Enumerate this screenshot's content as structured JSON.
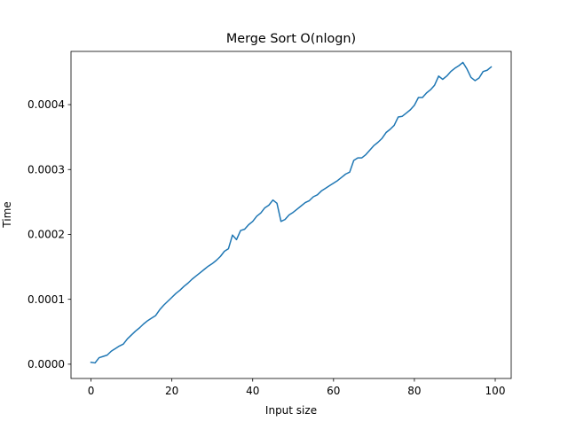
{
  "chart_data": {
    "type": "line",
    "title": "Merge Sort O(nlogn)",
    "xlabel": "Input size",
    "ylabel": "Time",
    "xlim": [
      -4.95,
      103.95
    ],
    "ylim": [
      -2.2e-05,
      0.000482
    ],
    "xticks": [
      0,
      20,
      40,
      60,
      80,
      100
    ],
    "xtick_labels": [
      "0",
      "20",
      "40",
      "60",
      "80",
      "100"
    ],
    "yticks": [
      0.0,
      0.0001,
      0.0002,
      0.0003,
      0.0004
    ],
    "ytick_labels": [
      "0.0000",
      "0.0001",
      "0.0002",
      "0.0003",
      "0.0004"
    ],
    "grid": false,
    "legend": null,
    "series": [
      {
        "color": "#1f77b4",
        "x": [
          0,
          1,
          2,
          3,
          4,
          5,
          6,
          7,
          8,
          9,
          10,
          11,
          12,
          13,
          14,
          15,
          16,
          17,
          18,
          19,
          20,
          21,
          22,
          23,
          24,
          25,
          26,
          27,
          28,
          29,
          30,
          31,
          32,
          33,
          34,
          35,
          36,
          37,
          38,
          39,
          40,
          41,
          42,
          43,
          44,
          45,
          46,
          47,
          48,
          49,
          50,
          51,
          52,
          53,
          54,
          55,
          56,
          57,
          58,
          59,
          60,
          61,
          62,
          63,
          64,
          65,
          66,
          67,
          68,
          69,
          70,
          71,
          72,
          73,
          74,
          75,
          76,
          77,
          78,
          79,
          80,
          81,
          82,
          83,
          84,
          85,
          86,
          87,
          88,
          89,
          90,
          91,
          92,
          93,
          94,
          95,
          96,
          97,
          98,
          99
        ],
        "values": [
          3e-06,
          2e-06,
          1e-05,
          1.2e-05,
          1.4e-05,
          2e-05,
          2.4e-05,
          2.8e-05,
          3.1e-05,
          3.9e-05,
          4.5e-05,
          5.1e-05,
          5.6e-05,
          6.2e-05,
          6.7e-05,
          7.1e-05,
          7.5e-05,
          8.4e-05,
          9.1e-05,
          9.7e-05,
          0.000103,
          0.000109,
          0.000114,
          0.00012,
          0.000125,
          0.000131,
          0.000136,
          0.000141,
          0.000146,
          0.000151,
          0.000155,
          0.00016,
          0.000166,
          0.000174,
          0.000178,
          0.000199,
          0.000192,
          0.000206,
          0.000208,
          0.000215,
          0.00022,
          0.000228,
          0.000233,
          0.000241,
          0.000245,
          0.000253,
          0.000248,
          0.00022,
          0.000223,
          0.00023,
          0.000234,
          0.000239,
          0.000244,
          0.000249,
          0.000252,
          0.000258,
          0.000261,
          0.000267,
          0.000271,
          0.000275,
          0.000279,
          0.000283,
          0.000288,
          0.000293,
          0.000296,
          0.000314,
          0.000318,
          0.000318,
          0.000323,
          0.00033,
          0.000337,
          0.000342,
          0.000348,
          0.000357,
          0.000362,
          0.000368,
          0.000381,
          0.000382,
          0.000387,
          0.000392,
          0.000399,
          0.000411,
          0.000411,
          0.000418,
          0.000423,
          0.00043,
          0.000444,
          0.000439,
          0.000444,
          0.000451,
          0.000456,
          0.00046,
          0.000465,
          0.000455,
          0.000442,
          0.000437,
          0.000441,
          0.000451,
          0.000453,
          0.000458
        ]
      }
    ]
  }
}
